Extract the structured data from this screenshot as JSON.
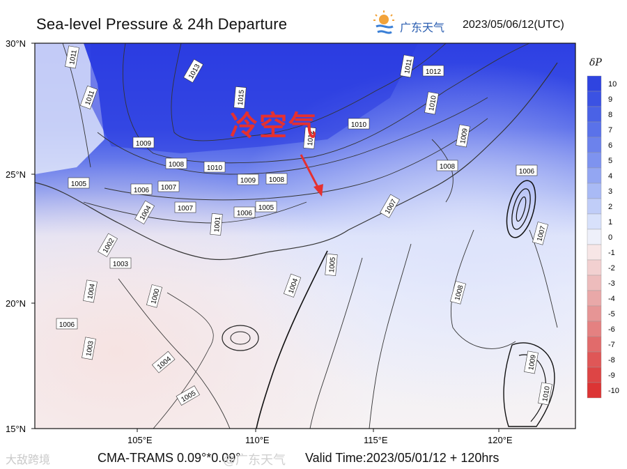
{
  "header": {
    "title": "Sea-level Pressure & 24h Departure",
    "brand": "广东天气",
    "timestamp": "2023/05/06/12(UTC)"
  },
  "footer": {
    "model": "CMA-TRAMS 0.09°*0.09°",
    "valid_time": "Valid Time:2023/05/01/12 + 120hrs"
  },
  "watermark": {
    "left": "大敌跨境",
    "center": "@广东天气"
  },
  "annotation": {
    "text": "冷空气",
    "color": "#e53030"
  },
  "map": {
    "lon_labels": [
      "105°E",
      "110°E",
      "115°E",
      "120°E"
    ],
    "lat_labels": [
      "30°N",
      "25°N",
      "20°N",
      "15°N"
    ],
    "lon_range": [
      101,
      123
    ],
    "lat_range": [
      15,
      30
    ],
    "isobar_labels": [
      "1011",
      "1013",
      "1015",
      "1012",
      "1011",
      "1010",
      "1009",
      "1008",
      "1007",
      "1006",
      "1005",
      "1004",
      "1003",
      "1002",
      "1001",
      "1000",
      "1004",
      "1005",
      "1006",
      "1007",
      "1008",
      "1009",
      "1010",
      "1011",
      "1012",
      "1010",
      "1009",
      "1008",
      "1007",
      "1006",
      "1005",
      "1004",
      "1003",
      "1004",
      "1005",
      "1006",
      "1007",
      "1008",
      "1009",
      "1010"
    ]
  },
  "colorbar": {
    "title": "δP",
    "ticks": [
      "10",
      "9",
      "8",
      "7",
      "6",
      "5",
      "4",
      "3",
      "2",
      "1",
      "0",
      "-1",
      "-2",
      "-3",
      "-4",
      "-5",
      "-6",
      "-7",
      "-8",
      "-9",
      "-10"
    ],
    "colors": [
      "#2f44e0",
      "#3b52e3",
      "#4a62e6",
      "#5a72e9",
      "#6c82ec",
      "#7e93ef",
      "#93a6f2",
      "#a9baf5",
      "#c0cdf8",
      "#d8e1fb",
      "#eef0fa",
      "#f7e6e6",
      "#f2d0d0",
      "#edbcbc",
      "#e9a8a8",
      "#e69595",
      "#e48181",
      "#e16b6b",
      "#df5757",
      "#dd4545",
      "#dc3434"
    ]
  }
}
